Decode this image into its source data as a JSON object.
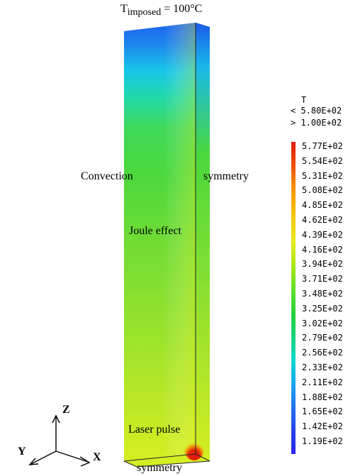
{
  "title": {
    "main": "T",
    "sub": "imposed",
    "rest": " = 100°C"
  },
  "annotations": {
    "convection": "Convection",
    "symmetry_right": "symmetry",
    "joule_effect": "Joule effect",
    "laser_pulse": "Laser pulse",
    "symmetry_bottom": "symmetry"
  },
  "axes": {
    "z": "Z",
    "y": "Y",
    "x": "X"
  },
  "legend": {
    "title": "T",
    "max_label": "< 5.80E+02",
    "min_label": "> 1.00E+02",
    "values": [
      "5.77E+02",
      "5.54E+02",
      "5.31E+02",
      "5.08E+02",
      "4.85E+02",
      "4.62E+02",
      "4.39E+02",
      "4.16E+02",
      "3.94E+02",
      "3.71E+02",
      "3.48E+02",
      "3.25E+02",
      "3.02E+02",
      "2.79E+02",
      "2.56E+02",
      "2.33E+02",
      "2.11E+02",
      "1.88E+02",
      "1.65E+02",
      "1.42E+02",
      "1.19E+02"
    ]
  },
  "colors": {
    "hot": "#e01a0a",
    "warm": "#f4c80c",
    "mid": "#58de2a",
    "cool": "#12d8d2",
    "cold": "#2a24e6"
  }
}
